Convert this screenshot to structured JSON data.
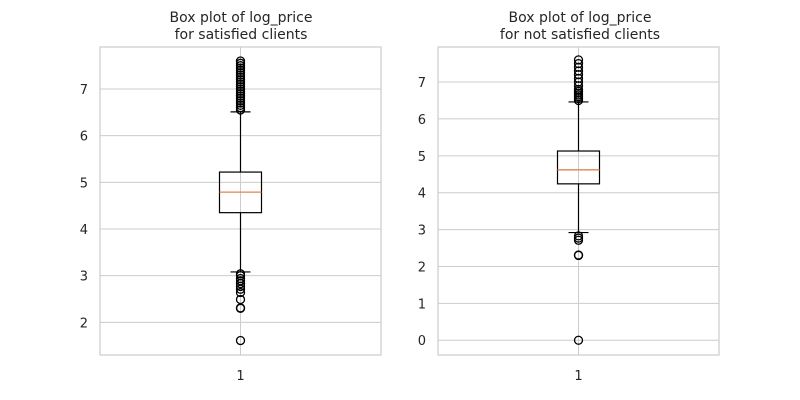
{
  "colors": {
    "grid": "#cccccc",
    "frame": "#cccccc",
    "box": "#000000",
    "median": "#dd8452",
    "text": "#262626",
    "background": "#ffffff"
  },
  "chart_data": [
    {
      "type": "boxplot",
      "title_line1": "Box plot of log_price",
      "title_line2": "for satisfied clients",
      "xlabel": "",
      "ylabel": "",
      "categories": [
        "1"
      ],
      "ylim": [
        1.3,
        7.9
      ],
      "yticks": [
        2,
        3,
        4,
        5,
        6,
        7
      ],
      "grid": true,
      "box": {
        "q1": 4.35,
        "median": 4.79,
        "q3": 5.22,
        "whisker_low": 3.08,
        "whisker_high": 6.51
      },
      "outliers": [
        1.61,
        2.3,
        2.31,
        2.49,
        2.64,
        2.71,
        2.77,
        2.83,
        2.89,
        2.94,
        3.0,
        3.04,
        6.55,
        6.6,
        6.65,
        6.7,
        6.75,
        6.8,
        6.85,
        6.9,
        6.95,
        7.0,
        7.05,
        7.1,
        7.15,
        7.2,
        7.25,
        7.3,
        7.35,
        7.4,
        7.45,
        7.5,
        7.55,
        7.6
      ]
    },
    {
      "type": "boxplot",
      "title_line1": "Box plot of log_price",
      "title_line2": "for not satisfied clients",
      "xlabel": "",
      "ylabel": "",
      "categories": [
        "1"
      ],
      "ylim": [
        -0.4,
        7.95
      ],
      "yticks": [
        0,
        1,
        2,
        3,
        4,
        5,
        6,
        7
      ],
      "grid": true,
      "box": {
        "q1": 4.24,
        "median": 4.62,
        "q3": 5.13,
        "whisker_low": 2.92,
        "whisker_high": 6.46
      },
      "outliers": [
        0.0,
        2.3,
        2.31,
        2.71,
        2.77,
        2.83,
        6.5,
        6.55,
        6.6,
        6.65,
        6.7,
        6.75,
        6.8,
        6.9,
        7.0,
        7.1,
        7.2,
        7.3,
        7.4,
        7.5,
        7.6
      ]
    }
  ]
}
